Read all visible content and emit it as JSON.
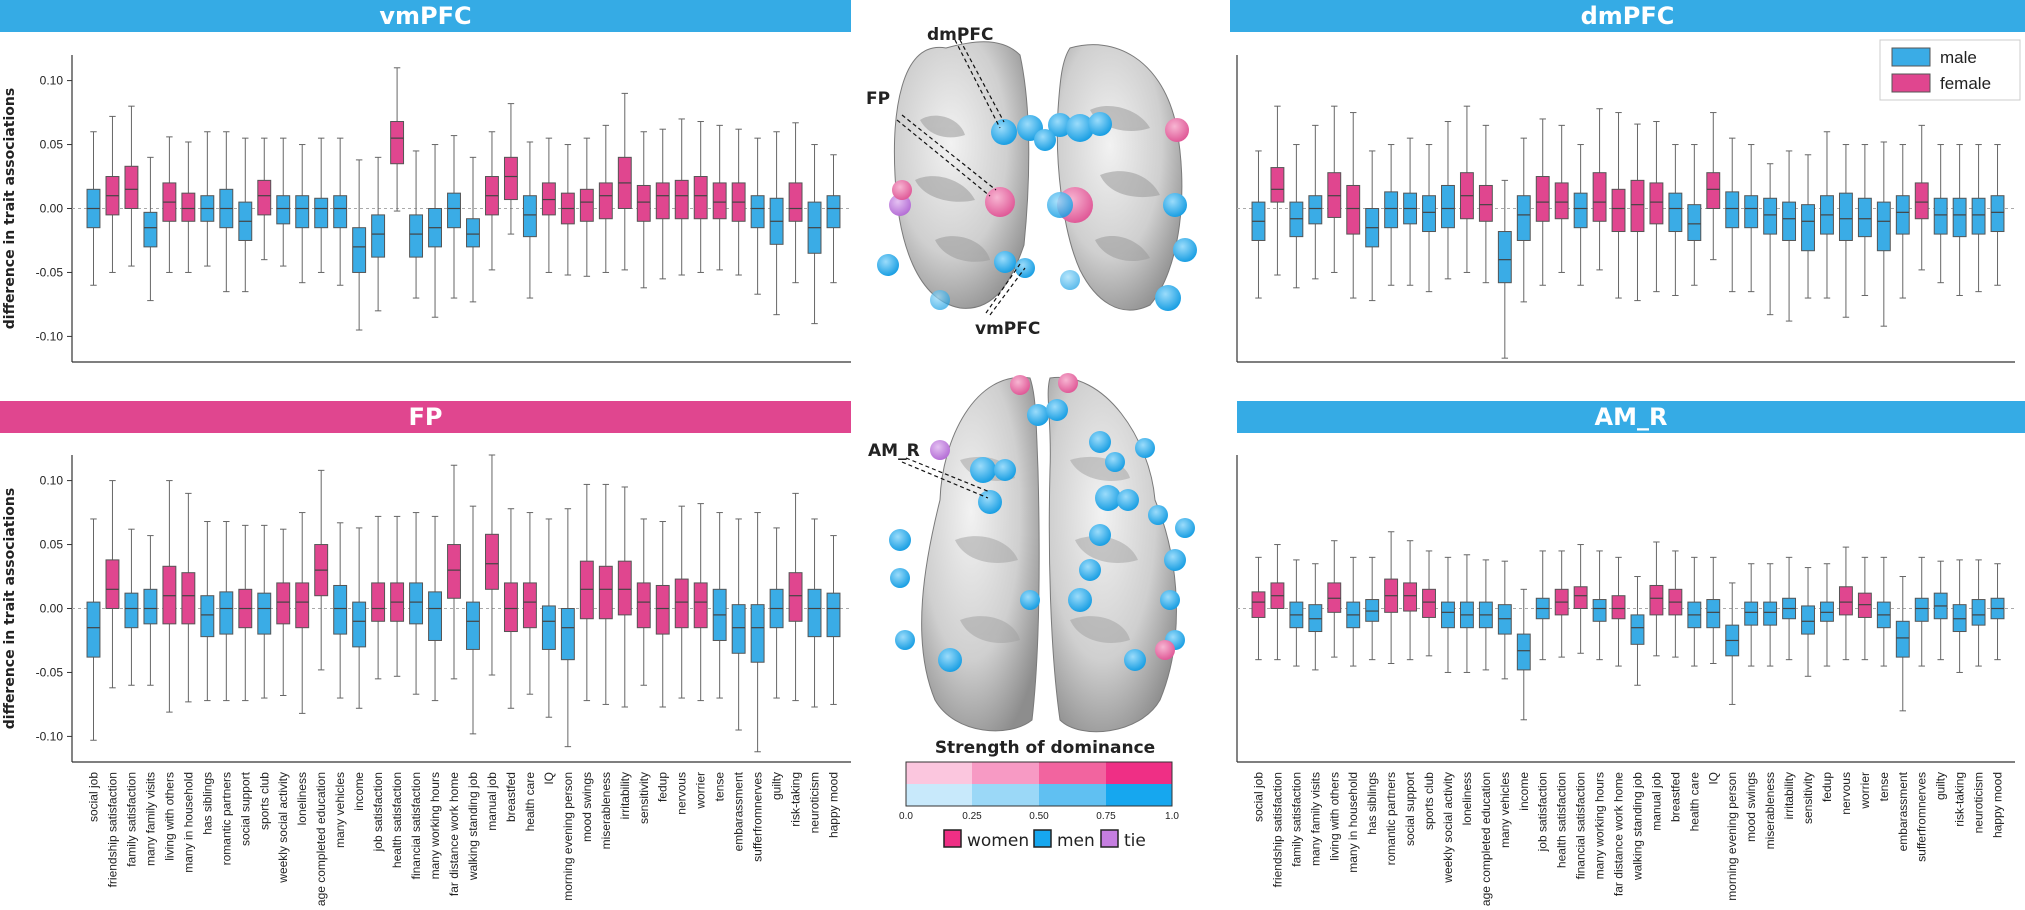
{
  "colors": {
    "male": "#3aace6",
    "female": "#e0468f",
    "tie": "#c57ee0",
    "box_edge": "#555555"
  },
  "traits": [
    "social job",
    "friendship satisfaction",
    "family satisfaction",
    "many family visits",
    "living with others",
    "many in household",
    "has siblings",
    "romantic partners",
    "social support",
    "sports club",
    "weekly social activity",
    "loneliness",
    "age completed education",
    "many vehicles",
    "income",
    "job satisfaction",
    "health satisfaction",
    "financial satisfaction",
    "many working hours",
    "far distance work home",
    "walking standing job",
    "manual job",
    "breastfed",
    "health care",
    "IQ",
    "morning evening person",
    "mood swings",
    "miserableness",
    "irritability",
    "sensitivity",
    "fedup",
    "nervous",
    "worrier",
    "tense",
    "embarassment",
    "sufferfromnerves",
    "guilty",
    "risk-taking",
    "neuroticism",
    "happy mood"
  ],
  "legend": {
    "male": "male",
    "female": "female"
  },
  "center": {
    "region_labels": {
      "dmpfc": "dmPFC",
      "fp": "FP",
      "vmpfc": "vmPFC",
      "am_r": "AM_R"
    },
    "colorbar_title": "Strength of dominance",
    "colorbar_ticks": [
      "0.0",
      "0.25",
      "0.50",
      "0.75",
      "1.0"
    ],
    "legend_women": "women",
    "legend_men": "men",
    "legend_tie": "tie"
  },
  "chart_data": [
    {
      "id": "vmpfc",
      "type": "boxplot",
      "title": "vmPFC",
      "ylabel": "difference in trait associations",
      "ylim": [
        -0.12,
        0.12
      ],
      "yticks": [
        -0.1,
        -0.05,
        0.0,
        0.05,
        0.1
      ],
      "sex": [
        "m",
        "f",
        "f",
        "m",
        "f",
        "f",
        "m",
        "m",
        "m",
        "f",
        "m",
        "m",
        "m",
        "m",
        "m",
        "m",
        "f",
        "m",
        "m",
        "m",
        "m",
        "f",
        "f",
        "m",
        "f",
        "f",
        "f",
        "f",
        "f",
        "f",
        "f",
        "f",
        "f",
        "f",
        "f",
        "m",
        "m",
        "f",
        "m",
        "m"
      ],
      "median": [
        0.0,
        0.01,
        0.015,
        -0.015,
        0.005,
        0.0,
        0.0,
        0.0,
        -0.01,
        0.01,
        0.0,
        0.0,
        0.0,
        0.0,
        -0.03,
        -0.02,
        0.055,
        -0.02,
        -0.015,
        0.0,
        -0.02,
        0.01,
        0.025,
        -0.005,
        0.007,
        0.0,
        0.005,
        0.01,
        0.02,
        0.005,
        0.01,
        0.01,
        0.01,
        0.005,
        0.005,
        0.0,
        -0.01,
        0.0,
        -0.015,
        0.0
      ],
      "q1": [
        -0.015,
        -0.005,
        0.0,
        -0.03,
        -0.01,
        -0.01,
        -0.01,
        -0.015,
        -0.025,
        -0.005,
        -0.012,
        -0.015,
        -0.015,
        -0.015,
        -0.05,
        -0.038,
        0.035,
        -0.038,
        -0.03,
        -0.015,
        -0.03,
        -0.005,
        0.007,
        -0.022,
        -0.005,
        -0.012,
        -0.01,
        -0.008,
        0.0,
        -0.01,
        -0.008,
        -0.008,
        -0.008,
        -0.008,
        -0.01,
        -0.015,
        -0.028,
        -0.01,
        -0.035,
        -0.015
      ],
      "q3": [
        0.015,
        0.025,
        0.033,
        -0.003,
        0.02,
        0.012,
        0.01,
        0.015,
        0.005,
        0.022,
        0.01,
        0.01,
        0.008,
        0.01,
        -0.015,
        -0.005,
        0.068,
        -0.005,
        0.0,
        0.012,
        -0.008,
        0.025,
        0.04,
        0.01,
        0.02,
        0.012,
        0.015,
        0.02,
        0.04,
        0.018,
        0.02,
        0.022,
        0.025,
        0.02,
        0.02,
        0.01,
        0.008,
        0.02,
        0.005,
        0.01
      ],
      "lo": [
        -0.06,
        -0.05,
        -0.045,
        -0.072,
        -0.05,
        -0.05,
        -0.045,
        -0.065,
        -0.065,
        -0.04,
        -0.045,
        -0.058,
        -0.05,
        -0.06,
        -0.095,
        -0.08,
        -0.002,
        -0.07,
        -0.085,
        -0.07,
        -0.073,
        -0.048,
        -0.02,
        -0.07,
        -0.05,
        -0.052,
        -0.053,
        -0.05,
        -0.048,
        -0.062,
        -0.055,
        -0.052,
        -0.05,
        -0.048,
        -0.052,
        -0.067,
        -0.083,
        -0.058,
        -0.09,
        -0.058
      ],
      "hi": [
        0.06,
        0.072,
        0.08,
        0.04,
        0.056,
        0.052,
        0.06,
        0.06,
        0.055,
        0.055,
        0.055,
        0.05,
        0.055,
        0.055,
        0.038,
        0.04,
        0.11,
        0.045,
        0.05,
        0.057,
        0.04,
        0.06,
        0.082,
        0.052,
        0.055,
        0.05,
        0.055,
        0.065,
        0.09,
        0.06,
        0.062,
        0.07,
        0.068,
        0.065,
        0.062,
        0.055,
        0.06,
        0.067,
        0.05,
        0.042
      ]
    },
    {
      "id": "dmpfc",
      "type": "boxplot",
      "title": "dmPFC",
      "ylabel": "",
      "ylim": [
        -0.12,
        0.12
      ],
      "yticks": [],
      "sex": [
        "m",
        "f",
        "m",
        "m",
        "f",
        "f",
        "m",
        "m",
        "m",
        "m",
        "m",
        "f",
        "f",
        "m",
        "m",
        "f",
        "f",
        "m",
        "f",
        "f",
        "f",
        "f",
        "m",
        "m",
        "f",
        "m",
        "m",
        "m",
        "m",
        "m",
        "m",
        "m",
        "m",
        "m",
        "m",
        "f",
        "m",
        "m",
        "m",
        "m"
      ],
      "median": [
        -0.01,
        0.015,
        -0.008,
        0.0,
        0.01,
        0.0,
        -0.015,
        0.0,
        0.0,
        -0.003,
        0.0,
        0.01,
        0.003,
        -0.04,
        -0.005,
        0.005,
        0.005,
        0.0,
        0.005,
        0.0,
        0.003,
        0.005,
        0.0,
        -0.012,
        0.015,
        0.0,
        0.0,
        -0.005,
        -0.008,
        -0.01,
        -0.005,
        -0.008,
        -0.008,
        -0.01,
        -0.003,
        0.005,
        -0.005,
        -0.005,
        -0.005,
        -0.003
      ],
      "q1": [
        -0.025,
        0.005,
        -0.022,
        -0.012,
        -0.007,
        -0.02,
        -0.03,
        -0.015,
        -0.012,
        -0.018,
        -0.015,
        -0.008,
        -0.01,
        -0.058,
        -0.025,
        -0.01,
        -0.008,
        -0.015,
        -0.01,
        -0.018,
        -0.018,
        -0.012,
        -0.018,
        -0.025,
        0.0,
        -0.015,
        -0.015,
        -0.02,
        -0.025,
        -0.033,
        -0.02,
        -0.025,
        -0.022,
        -0.033,
        -0.02,
        -0.008,
        -0.02,
        -0.022,
        -0.02,
        -0.018
      ],
      "q3": [
        0.005,
        0.032,
        0.005,
        0.01,
        0.028,
        0.018,
        0.0,
        0.013,
        0.012,
        0.01,
        0.018,
        0.028,
        0.018,
        -0.018,
        0.01,
        0.025,
        0.02,
        0.012,
        0.028,
        0.015,
        0.022,
        0.02,
        0.012,
        0.003,
        0.028,
        0.013,
        0.01,
        0.008,
        0.005,
        0.003,
        0.01,
        0.012,
        0.008,
        0.005,
        0.01,
        0.02,
        0.008,
        0.008,
        0.008,
        0.01
      ],
      "lo": [
        -0.07,
        -0.052,
        -0.062,
        -0.055,
        -0.05,
        -0.07,
        -0.072,
        -0.06,
        -0.06,
        -0.065,
        -0.055,
        -0.05,
        -0.058,
        -0.117,
        -0.073,
        -0.06,
        -0.05,
        -0.06,
        -0.048,
        -0.07,
        -0.072,
        -0.065,
        -0.068,
        -0.06,
        -0.04,
        -0.065,
        -0.065,
        -0.083,
        -0.088,
        -0.07,
        -0.07,
        -0.085,
        -0.068,
        -0.092,
        -0.07,
        -0.048,
        -0.058,
        -0.068,
        -0.065,
        -0.06
      ],
      "hi": [
        0.045,
        0.08,
        0.05,
        0.065,
        0.08,
        0.075,
        0.045,
        0.05,
        0.055,
        0.05,
        0.068,
        0.08,
        0.065,
        0.022,
        0.055,
        0.07,
        0.065,
        0.05,
        0.078,
        0.075,
        0.066,
        0.068,
        0.05,
        0.05,
        0.075,
        0.055,
        0.05,
        0.035,
        0.045,
        0.042,
        0.06,
        0.05,
        0.05,
        0.052,
        0.05,
        0.065,
        0.05,
        0.05,
        0.05,
        0.05
      ]
    },
    {
      "id": "fp",
      "type": "boxplot",
      "title": "FP",
      "ylabel": "difference in trait associations",
      "ylim": [
        -0.12,
        0.12
      ],
      "yticks": [
        -0.1,
        -0.05,
        0.0,
        0.05,
        0.1
      ],
      "sex": [
        "m",
        "f",
        "m",
        "m",
        "f",
        "f",
        "m",
        "m",
        "f",
        "m",
        "f",
        "f",
        "f",
        "m",
        "m",
        "f",
        "f",
        "m",
        "m",
        "f",
        "m",
        "f",
        "f",
        "f",
        "m",
        "m",
        "f",
        "f",
        "f",
        "f",
        "f",
        "f",
        "f",
        "m",
        "m",
        "m",
        "m",
        "f",
        "m",
        "m"
      ],
      "median": [
        -0.015,
        0.015,
        0.0,
        0.0,
        0.01,
        0.01,
        -0.005,
        0.0,
        0.0,
        0.0,
        0.005,
        0.005,
        0.03,
        0.0,
        -0.01,
        0.0,
        0.005,
        0.005,
        0.0,
        0.03,
        -0.01,
        0.035,
        0.0,
        0.005,
        -0.01,
        -0.015,
        0.015,
        0.015,
        0.015,
        0.005,
        0.0,
        0.005,
        0.005,
        -0.005,
        -0.015,
        -0.015,
        0.0,
        0.01,
        0.0,
        0.0
      ],
      "q1": [
        -0.038,
        0.0,
        -0.015,
        -0.012,
        -0.012,
        -0.012,
        -0.022,
        -0.02,
        -0.015,
        -0.02,
        -0.012,
        -0.015,
        0.01,
        -0.02,
        -0.03,
        -0.01,
        -0.01,
        -0.012,
        -0.025,
        0.008,
        -0.032,
        0.015,
        -0.018,
        -0.015,
        -0.032,
        -0.04,
        -0.008,
        -0.008,
        -0.005,
        -0.015,
        -0.02,
        -0.015,
        -0.015,
        -0.025,
        -0.035,
        -0.042,
        -0.015,
        -0.01,
        -0.022,
        -0.022
      ],
      "q3": [
        0.005,
        0.038,
        0.012,
        0.015,
        0.033,
        0.028,
        0.01,
        0.013,
        0.015,
        0.012,
        0.02,
        0.02,
        0.05,
        0.018,
        0.005,
        0.02,
        0.02,
        0.02,
        0.013,
        0.05,
        0.005,
        0.058,
        0.02,
        0.02,
        0.002,
        0.0,
        0.037,
        0.033,
        0.037,
        0.02,
        0.018,
        0.023,
        0.02,
        0.015,
        0.003,
        0.003,
        0.015,
        0.028,
        0.015,
        0.012
      ],
      "lo": [
        -0.103,
        -0.062,
        -0.06,
        -0.06,
        -0.081,
        -0.073,
        -0.072,
        -0.072,
        -0.072,
        -0.07,
        -0.068,
        -0.082,
        -0.048,
        -0.07,
        -0.078,
        -0.055,
        -0.053,
        -0.067,
        -0.072,
        -0.055,
        -0.098,
        -0.052,
        -0.078,
        -0.067,
        -0.085,
        -0.108,
        -0.072,
        -0.075,
        -0.077,
        -0.06,
        -0.077,
        -0.07,
        -0.072,
        -0.07,
        -0.095,
        -0.112,
        -0.07,
        -0.072,
        -0.077,
        -0.075
      ],
      "hi": [
        0.07,
        0.1,
        0.062,
        0.057,
        0.1,
        0.09,
        0.068,
        0.068,
        0.065,
        0.065,
        0.062,
        0.075,
        0.108,
        0.067,
        0.063,
        0.072,
        0.072,
        0.075,
        0.072,
        0.112,
        0.08,
        0.12,
        0.078,
        0.075,
        0.07,
        0.078,
        0.097,
        0.097,
        0.095,
        0.07,
        0.068,
        0.08,
        0.082,
        0.075,
        0.07,
        0.075,
        0.063,
        0.09,
        0.07,
        0.057
      ]
    },
    {
      "id": "am_r",
      "type": "boxplot",
      "title": "AM_R",
      "ylabel": "",
      "ylim": [
        -0.12,
        0.12
      ],
      "yticks": [],
      "sex": [
        "f",
        "f",
        "m",
        "m",
        "f",
        "m",
        "m",
        "f",
        "f",
        "f",
        "m",
        "m",
        "m",
        "m",
        "m",
        "m",
        "f",
        "f",
        "m",
        "f",
        "m",
        "f",
        "f",
        "m",
        "m",
        "m",
        "m",
        "m",
        "m",
        "m",
        "m",
        "f",
        "f",
        "m",
        "m",
        "m",
        "m",
        "m",
        "m",
        "m"
      ],
      "median": [
        0.005,
        0.01,
        -0.005,
        -0.008,
        0.008,
        -0.005,
        -0.002,
        0.01,
        0.01,
        0.005,
        -0.003,
        -0.005,
        -0.005,
        -0.008,
        -0.033,
        0.0,
        0.005,
        0.01,
        0.0,
        0.0,
        -0.015,
        0.008,
        0.005,
        -0.005,
        -0.003,
        -0.025,
        -0.003,
        -0.003,
        0.0,
        -0.01,
        -0.003,
        0.005,
        0.003,
        -0.005,
        -0.023,
        0.0,
        0.002,
        -0.008,
        -0.005,
        0.0
      ],
      "q1": [
        -0.007,
        0.0,
        -0.015,
        -0.018,
        -0.003,
        -0.015,
        -0.01,
        -0.003,
        -0.002,
        -0.007,
        -0.015,
        -0.015,
        -0.015,
        -0.02,
        -0.048,
        -0.008,
        -0.005,
        0.0,
        -0.01,
        -0.008,
        -0.028,
        -0.005,
        -0.005,
        -0.015,
        -0.015,
        -0.037,
        -0.013,
        -0.013,
        -0.008,
        -0.02,
        -0.01,
        -0.005,
        -0.007,
        -0.015,
        -0.038,
        -0.01,
        -0.008,
        -0.018,
        -0.013,
        -0.008
      ],
      "q3": [
        0.013,
        0.02,
        0.005,
        0.003,
        0.02,
        0.005,
        0.007,
        0.023,
        0.02,
        0.015,
        0.005,
        0.005,
        0.005,
        0.003,
        -0.02,
        0.008,
        0.015,
        0.017,
        0.007,
        0.01,
        -0.005,
        0.018,
        0.015,
        0.005,
        0.007,
        -0.013,
        0.005,
        0.005,
        0.008,
        0.002,
        0.005,
        0.017,
        0.012,
        0.005,
        -0.01,
        0.008,
        0.012,
        0.003,
        0.007,
        0.008
      ],
      "lo": [
        -0.04,
        -0.04,
        -0.045,
        -0.048,
        -0.038,
        -0.045,
        -0.04,
        -0.043,
        -0.04,
        -0.037,
        -0.05,
        -0.05,
        -0.048,
        -0.055,
        -0.087,
        -0.04,
        -0.038,
        -0.035,
        -0.04,
        -0.045,
        -0.06,
        -0.037,
        -0.038,
        -0.045,
        -0.043,
        -0.075,
        -0.045,
        -0.045,
        -0.04,
        -0.053,
        -0.045,
        -0.04,
        -0.04,
        -0.045,
        -0.08,
        -0.045,
        -0.04,
        -0.05,
        -0.045,
        -0.04
      ],
      "hi": [
        0.04,
        0.05,
        0.038,
        0.035,
        0.053,
        0.04,
        0.04,
        0.06,
        0.053,
        0.045,
        0.04,
        0.042,
        0.038,
        0.037,
        0.015,
        0.045,
        0.045,
        0.05,
        0.045,
        0.04,
        0.025,
        0.052,
        0.045,
        0.04,
        0.04,
        0.02,
        0.035,
        0.035,
        0.04,
        0.032,
        0.035,
        0.048,
        0.04,
        0.04,
        0.025,
        0.04,
        0.037,
        0.038,
        0.038,
        0.035
      ]
    }
  ]
}
